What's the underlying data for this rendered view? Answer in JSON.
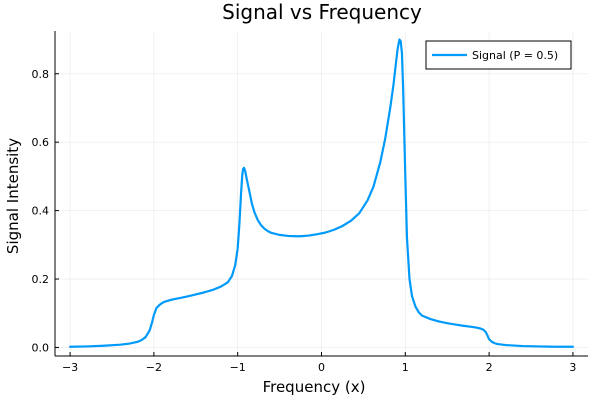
{
  "chart_data": {
    "type": "line",
    "title": "Signal vs Frequency",
    "xlabel": "Frequency (x)",
    "ylabel": "Signal Intensity",
    "xlim": [
      -3.18,
      3.18
    ],
    "ylim": [
      -0.025,
      0.925
    ],
    "xticks": [
      -3,
      -2,
      -1,
      0,
      1,
      2,
      3
    ],
    "yticks": [
      0.0,
      0.2,
      0.4,
      0.6,
      0.8
    ],
    "xtick_labels": [
      "−3",
      "−2",
      "−1",
      "0",
      "1",
      "2",
      "3"
    ],
    "ytick_labels": [
      "0.0",
      "0.2",
      "0.4",
      "0.6",
      "0.8"
    ],
    "grid": true,
    "legend_position": "top-right",
    "series": [
      {
        "name": "Signal (P = 0.5)",
        "color": "#009AFA",
        "x": [
          -3.0,
          -2.8,
          -2.6,
          -2.4,
          -2.3,
          -2.2,
          -2.15,
          -2.1,
          -2.05,
          -2.02,
          -2.0,
          -1.97,
          -1.93,
          -1.88,
          -1.8,
          -1.7,
          -1.6,
          -1.5,
          -1.4,
          -1.3,
          -1.2,
          -1.12,
          -1.07,
          -1.03,
          -1.0,
          -0.98,
          -0.96,
          -0.945,
          -0.935,
          -0.925,
          -0.91,
          -0.89,
          -0.86,
          -0.83,
          -0.8,
          -0.76,
          -0.72,
          -0.68,
          -0.64,
          -0.6,
          -0.5,
          -0.4,
          -0.3,
          -0.25,
          -0.15,
          -0.05,
          0.05,
          0.15,
          0.25,
          0.35,
          0.45,
          0.55,
          0.62,
          0.7,
          0.76,
          0.82,
          0.86,
          0.89,
          0.91,
          0.93,
          0.945,
          0.96,
          0.975,
          1.0,
          1.02,
          1.05,
          1.08,
          1.12,
          1.16,
          1.2,
          1.3,
          1.4,
          1.5,
          1.6,
          1.7,
          1.8,
          1.85,
          1.9,
          1.93,
          1.96,
          1.98,
          2.0,
          2.03,
          2.06,
          2.1,
          2.2,
          2.4,
          2.6,
          2.8,
          3.0
        ],
        "y": [
          0.002,
          0.003,
          0.005,
          0.008,
          0.011,
          0.016,
          0.021,
          0.03,
          0.05,
          0.075,
          0.095,
          0.115,
          0.125,
          0.133,
          0.139,
          0.144,
          0.149,
          0.155,
          0.161,
          0.168,
          0.178,
          0.19,
          0.208,
          0.24,
          0.29,
          0.36,
          0.45,
          0.505,
          0.522,
          0.525,
          0.515,
          0.49,
          0.455,
          0.42,
          0.395,
          0.372,
          0.357,
          0.347,
          0.34,
          0.335,
          0.329,
          0.326,
          0.325,
          0.325,
          0.327,
          0.331,
          0.336,
          0.344,
          0.355,
          0.37,
          0.392,
          0.43,
          0.47,
          0.54,
          0.61,
          0.7,
          0.77,
          0.835,
          0.875,
          0.9,
          0.895,
          0.86,
          0.75,
          0.5,
          0.32,
          0.2,
          0.15,
          0.12,
          0.103,
          0.093,
          0.083,
          0.076,
          0.071,
          0.067,
          0.063,
          0.06,
          0.058,
          0.055,
          0.052,
          0.045,
          0.035,
          0.024,
          0.017,
          0.013,
          0.01,
          0.007,
          0.004,
          0.003,
          0.002,
          0.002
        ]
      }
    ]
  }
}
